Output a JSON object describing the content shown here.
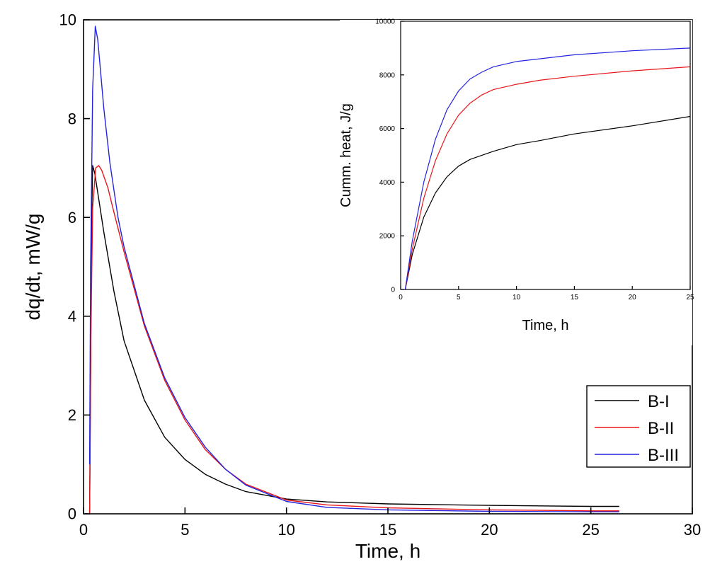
{
  "chart_data": [
    {
      "type": "line",
      "xlabel": "Time, h",
      "ylabel": "dq/dt, mW/g",
      "xlim": [
        0,
        30
      ],
      "ylim": [
        0,
        10
      ],
      "xticks": [
        0,
        5,
        10,
        15,
        20,
        25,
        30
      ],
      "yticks": [
        0,
        2,
        4,
        6,
        8,
        10
      ],
      "grid": false,
      "legend_position": "right",
      "series": [
        {
          "name": "B-I",
          "color": "#000000",
          "points": [
            [
              0.3,
              0
            ],
            [
              0.35,
              3.0
            ],
            [
              0.4,
              6.0
            ],
            [
              0.45,
              7.05
            ],
            [
              0.55,
              6.9
            ],
            [
              0.7,
              6.5
            ],
            [
              1,
              5.7
            ],
            [
              1.5,
              4.5
            ],
            [
              2,
              3.5
            ],
            [
              3,
              2.3
            ],
            [
              4,
              1.55
            ],
            [
              5,
              1.1
            ],
            [
              6,
              0.8
            ],
            [
              7,
              0.6
            ],
            [
              8,
              0.45
            ],
            [
              10,
              0.3
            ],
            [
              12,
              0.24
            ],
            [
              15,
              0.2
            ],
            [
              20,
              0.17
            ],
            [
              25,
              0.15
            ],
            [
              26.4,
              0.15
            ]
          ]
        },
        {
          "name": "B-II",
          "color": "#e8161b",
          "points": [
            [
              0.3,
              0
            ],
            [
              0.32,
              1.05
            ],
            [
              0.36,
              3.5
            ],
            [
              0.45,
              6.2
            ],
            [
              0.6,
              7.0
            ],
            [
              0.75,
              7.05
            ],
            [
              0.9,
              6.95
            ],
            [
              1.2,
              6.6
            ],
            [
              1.5,
              6.1
            ],
            [
              2,
              5.3
            ],
            [
              3,
              3.8
            ],
            [
              4,
              2.7
            ],
            [
              5,
              1.9
            ],
            [
              6,
              1.3
            ],
            [
              7,
              0.9
            ],
            [
              8,
              0.6
            ],
            [
              10,
              0.28
            ],
            [
              12,
              0.18
            ],
            [
              15,
              0.12
            ],
            [
              20,
              0.08
            ],
            [
              25,
              0.06
            ],
            [
              26.4,
              0.06
            ]
          ]
        },
        {
          "name": "B-III",
          "color": "#2323e0",
          "points": [
            [
              0.3,
              1.0
            ],
            [
              0.35,
              5.0
            ],
            [
              0.45,
              8.6
            ],
            [
              0.58,
              9.87
            ],
            [
              0.7,
              9.6
            ],
            [
              0.85,
              8.9
            ],
            [
              1,
              8.2
            ],
            [
              1.3,
              7.1
            ],
            [
              1.7,
              6.0
            ],
            [
              2,
              5.4
            ],
            [
              3,
              3.85
            ],
            [
              4,
              2.75
            ],
            [
              5,
              1.95
            ],
            [
              6,
              1.35
            ],
            [
              7,
              0.9
            ],
            [
              8,
              0.58
            ],
            [
              10,
              0.25
            ],
            [
              12,
              0.13
            ],
            [
              15,
              0.08
            ],
            [
              20,
              0.05
            ],
            [
              25,
              0.04
            ],
            [
              26.4,
              0.04
            ]
          ]
        }
      ]
    },
    {
      "type": "line",
      "xlabel": "Time, h",
      "ylabel": "Cumm. heat, J/g",
      "xlim": [
        0,
        25
      ],
      "ylim": [
        0,
        10000
      ],
      "xticks": [
        0,
        5,
        10,
        15,
        20,
        25
      ],
      "yticks": [
        0,
        2000,
        4000,
        6000,
        8000,
        10000
      ],
      "grid": false,
      "series": [
        {
          "name": "B-I",
          "color": "#000000",
          "points": [
            [
              0.4,
              0
            ],
            [
              1,
              1300
            ],
            [
              2,
              2700
            ],
            [
              3,
              3600
            ],
            [
              4,
              4200
            ],
            [
              5,
              4600
            ],
            [
              6,
              4850
            ],
            [
              8,
              5150
            ],
            [
              10,
              5400
            ],
            [
              12,
              5550
            ],
            [
              15,
              5800
            ],
            [
              20,
              6100
            ],
            [
              25,
              6450
            ]
          ]
        },
        {
          "name": "B-II",
          "color": "#e8161b",
          "points": [
            [
              0.4,
              0
            ],
            [
              1,
              1500
            ],
            [
              2,
              3400
            ],
            [
              3,
              4800
            ],
            [
              4,
              5800
            ],
            [
              5,
              6500
            ],
            [
              6,
              6950
            ],
            [
              7,
              7250
            ],
            [
              8,
              7450
            ],
            [
              10,
              7650
            ],
            [
              12,
              7800
            ],
            [
              15,
              7950
            ],
            [
              20,
              8150
            ],
            [
              25,
              8300
            ]
          ]
        },
        {
          "name": "B-III",
          "color": "#2323e0",
          "points": [
            [
              0.4,
              0
            ],
            [
              1,
              1800
            ],
            [
              2,
              4000
            ],
            [
              3,
              5600
            ],
            [
              4,
              6700
            ],
            [
              5,
              7400
            ],
            [
              6,
              7850
            ],
            [
              7,
              8100
            ],
            [
              8,
              8300
            ],
            [
              10,
              8500
            ],
            [
              12,
              8600
            ],
            [
              15,
              8750
            ],
            [
              20,
              8900
            ],
            [
              25,
              9000
            ]
          ]
        }
      ]
    }
  ]
}
